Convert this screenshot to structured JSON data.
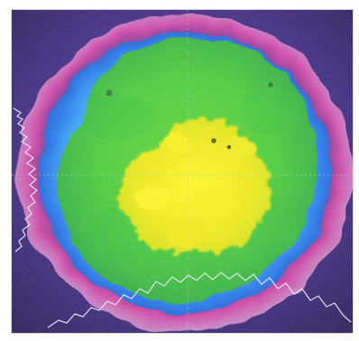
{
  "image": {
    "subject": "beam-profile-heatmap",
    "palette": {
      "outer_background": "#4a2f84",
      "outer_ring": "#c43ea6",
      "blue_ring": "#2f88ff",
      "cyan_band": "#40d7ff",
      "green_core": "#49c63f",
      "yellow_hotspot": "#f4ef19",
      "profile_trace": "#e7e7ef",
      "crosshair": "#9ad0b3"
    }
  }
}
